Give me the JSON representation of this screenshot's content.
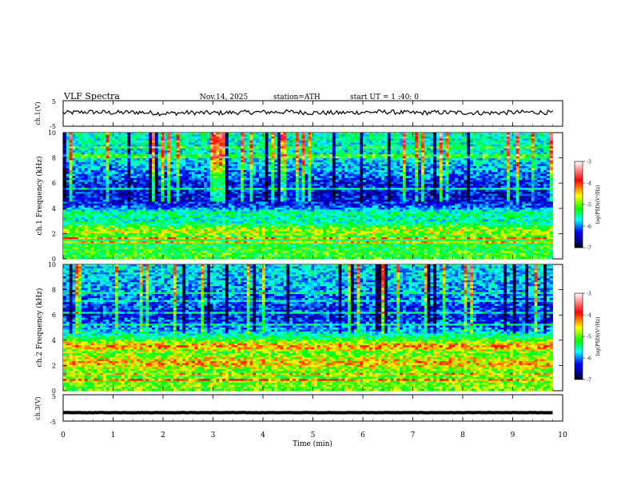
{
  "header": {
    "title": "VLF  Spectra",
    "date": "Nov.14, 2025",
    "station": "station=ATH",
    "start": "start  UT  =   1 :40: 0"
  },
  "colorbar": {
    "label": "log(PSD)(V²/Hz)",
    "ticks": [
      "-3",
      "-4",
      "-5",
      "-6",
      "-7"
    ],
    "colors": [
      "#ffffff",
      "#ff0000",
      "#ffff00",
      "#00ff00",
      "#00ffff",
      "#0000ff",
      "#000080",
      "#000000"
    ]
  },
  "chart_data": [
    {
      "type": "line",
      "panel": "ch1-waveform",
      "ylabel": "ch.1(V)",
      "ylim": [
        -5,
        5
      ],
      "yticks": [
        "5",
        "-5"
      ],
      "x": [
        0,
        0.5,
        1,
        1.5,
        2,
        2.5,
        3,
        3.5,
        4,
        4.5,
        5,
        5.5,
        6,
        6.5,
        7,
        7.5,
        8,
        8.5,
        9,
        9.5,
        9.8
      ],
      "values": [
        0.2,
        0.6,
        0.3,
        0.5,
        0.0,
        0.3,
        0.2,
        0.4,
        0.5,
        0.6,
        0.3,
        0.2,
        0.5,
        0.6,
        0.2,
        0.4,
        0.3,
        0.2,
        0.4,
        0.5,
        0.3
      ]
    },
    {
      "type": "heatmap",
      "panel": "ch1-spectrogram",
      "ylabel": "ch.1 Frequency  (kHz)",
      "ylim": [
        0,
        10
      ],
      "yticks": [
        "0",
        "2",
        "4",
        "6",
        "8",
        "10"
      ],
      "zlim": [
        -7,
        -3
      ],
      "freq_khz": [
        0.5,
        1.5,
        2.2,
        3.0,
        3.6,
        4.2,
        5.0,
        6.0,
        7.0,
        8.0,
        9.0,
        9.8
      ],
      "mean_log_psd": [
        -5.0,
        -5.2,
        -4.6,
        -5.5,
        -5.3,
        -6.1,
        -6.3,
        -6.2,
        -5.8,
        -5.6,
        -5.5,
        -5.4
      ]
    },
    {
      "type": "heatmap",
      "panel": "ch2-spectrogram",
      "ylabel": "ch.2 Frequency  (kHz)",
      "ylim": [
        0,
        10
      ],
      "yticks": [
        "0",
        "2",
        "4",
        "6",
        "8",
        "10"
      ],
      "zlim": [
        -7,
        -3
      ],
      "freq_khz": [
        0.5,
        1.5,
        2.2,
        3.0,
        3.5,
        4.2,
        5.0,
        6.0,
        7.0,
        8.0,
        9.0,
        9.8
      ],
      "mean_log_psd": [
        -4.8,
        -4.9,
        -4.3,
        -4.9,
        -4.2,
        -5.2,
        -5.9,
        -6.2,
        -6.0,
        -5.8,
        -5.7,
        -5.6
      ]
    },
    {
      "type": "line",
      "panel": "ch3-waveform",
      "ylabel": "ch.3(V)",
      "ylim": [
        -5,
        5
      ],
      "yticks": [
        "5",
        "-5"
      ],
      "x": [
        0,
        9.8
      ],
      "values": [
        -1.8,
        -1.8
      ]
    }
  ],
  "xaxis": {
    "label": "Time  (min)",
    "ticks": [
      "0",
      "1",
      "2",
      "3",
      "4",
      "5",
      "6",
      "7",
      "8",
      "9",
      "10"
    ],
    "xlim": [
      0,
      10
    ],
    "data_end": 9.8
  }
}
